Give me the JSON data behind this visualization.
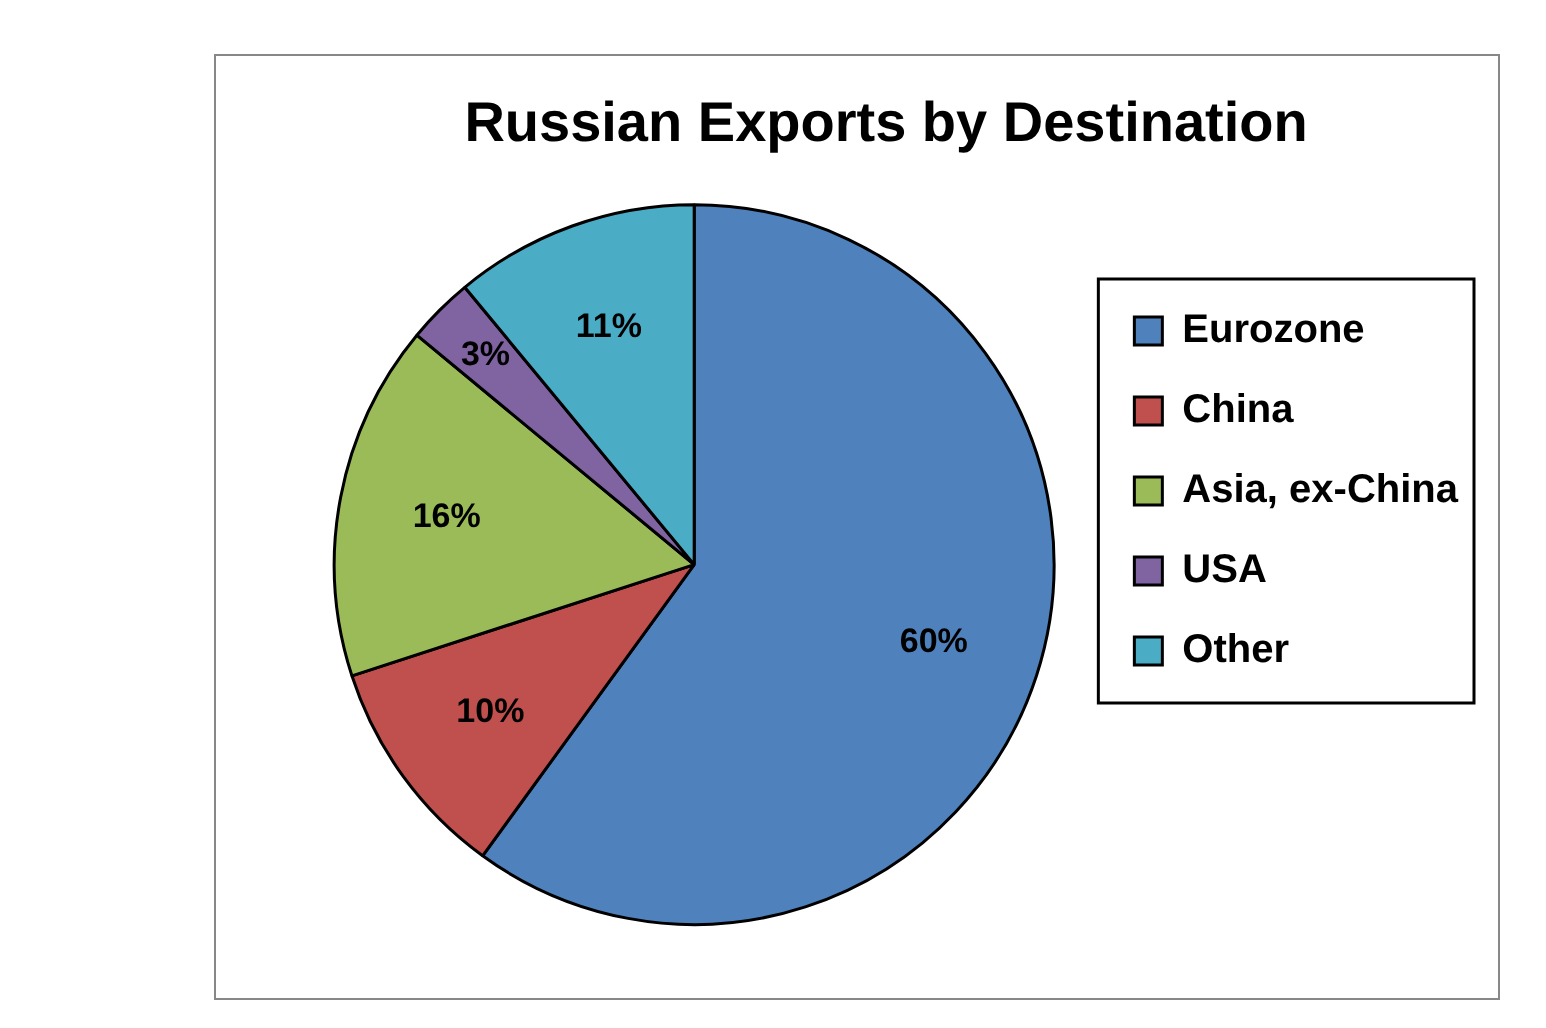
{
  "chart_data": {
    "type": "pie",
    "title": "Russian Exports by Destination",
    "categories": [
      "Eurozone",
      "China",
      "Asia, ex-China",
      "USA",
      "Other"
    ],
    "values": [
      60,
      10,
      16,
      3,
      11
    ],
    "value_labels": [
      "60%",
      "10%",
      "16%",
      "3%",
      "11%"
    ],
    "colors": [
      "#4f81bd",
      "#c0504d",
      "#9bbb59",
      "#8064a2",
      "#4bacc6"
    ],
    "legend": "right"
  }
}
